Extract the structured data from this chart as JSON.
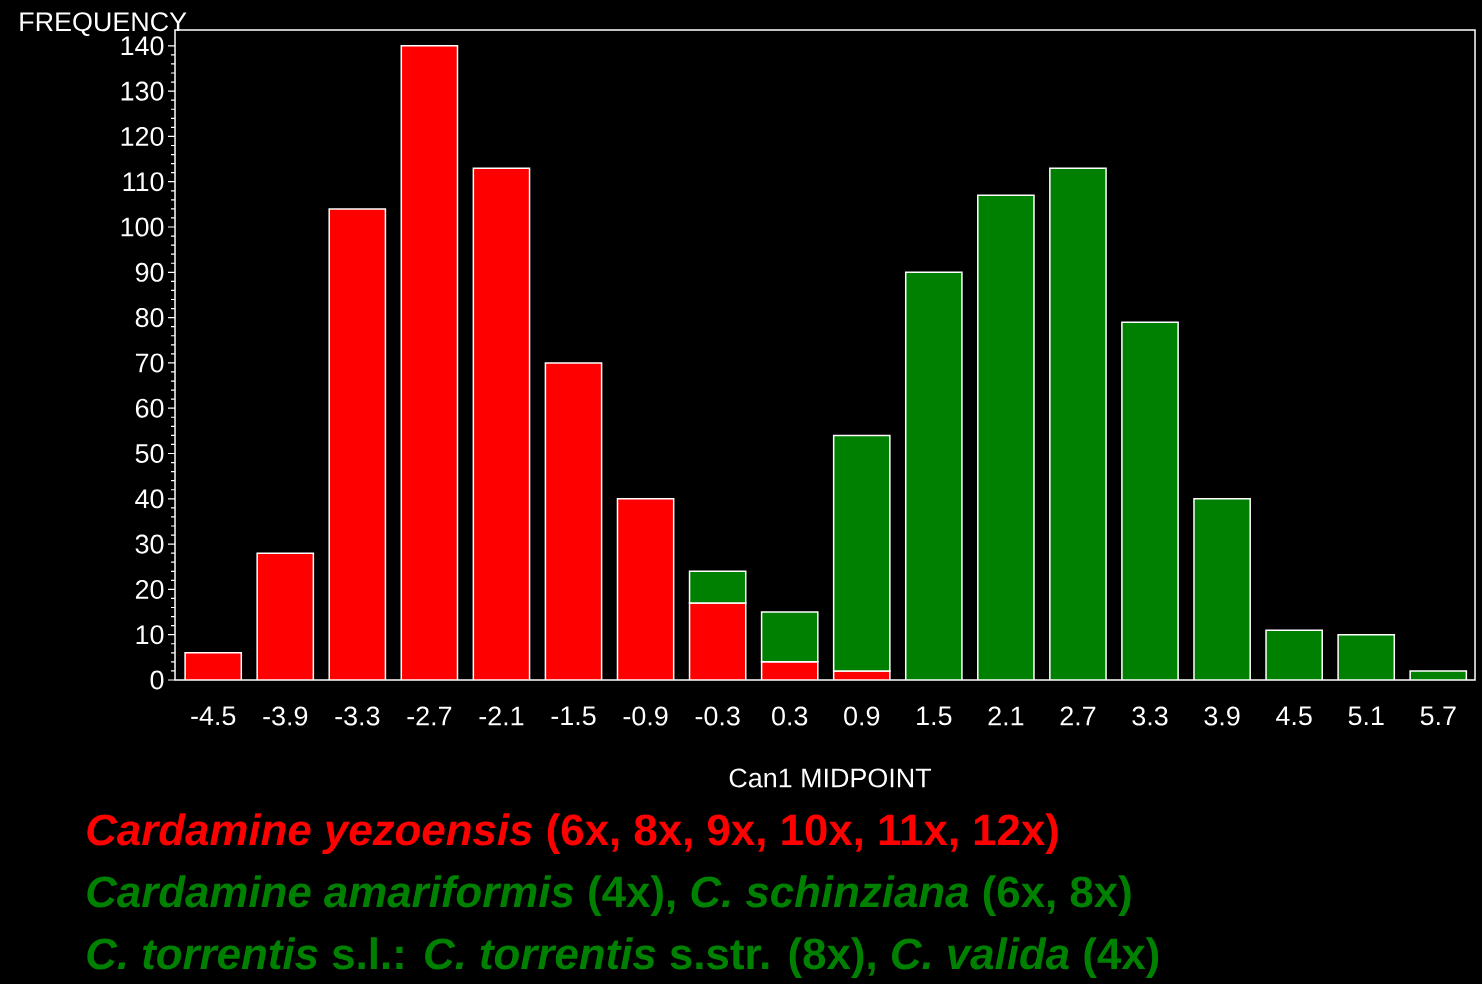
{
  "chart_data": {
    "type": "bar",
    "stacked": true,
    "ylabel": "FREQUENCY",
    "xlabel": "Can1 MIDPOINT",
    "categories": [
      "-4.5",
      "-3.9",
      "-3.3",
      "-2.7",
      "-2.1",
      "-1.5",
      "-0.9",
      "-0.3",
      "0.3",
      "0.9",
      "1.5",
      "2.1",
      "2.7",
      "3.3",
      "3.9",
      "4.5",
      "5.1",
      "5.7"
    ],
    "series": [
      {
        "name": "*Cardamine yezoensis* (6x, 8x, 9x, 10x, 11x, 12x)",
        "color": "#ff0000",
        "values": [
          6,
          28,
          104,
          140,
          113,
          70,
          40,
          17,
          4,
          2,
          null,
          null,
          null,
          null,
          null,
          null,
          null,
          null
        ]
      },
      {
        "name": "*Cardamine amariformis* (4x), *C. schinziana* (6x, 8x)",
        "color": "#008000",
        "values": [
          null,
          null,
          null,
          null,
          null,
          null,
          null,
          7,
          11,
          52,
          90,
          107,
          113,
          79,
          40,
          11,
          10,
          2
        ]
      }
    ],
    "annotations": [
      "*C. torrentis* s.l.: *C. torrentis* s.str. (8x), *C. valida* (4x)"
    ],
    "ylim": [
      0,
      143.5
    ],
    "yticks": [
      0,
      10,
      20,
      30,
      40,
      50,
      60,
      70,
      80,
      90,
      100,
      110,
      120,
      130,
      140
    ],
    "legend": "bottom"
  }
}
